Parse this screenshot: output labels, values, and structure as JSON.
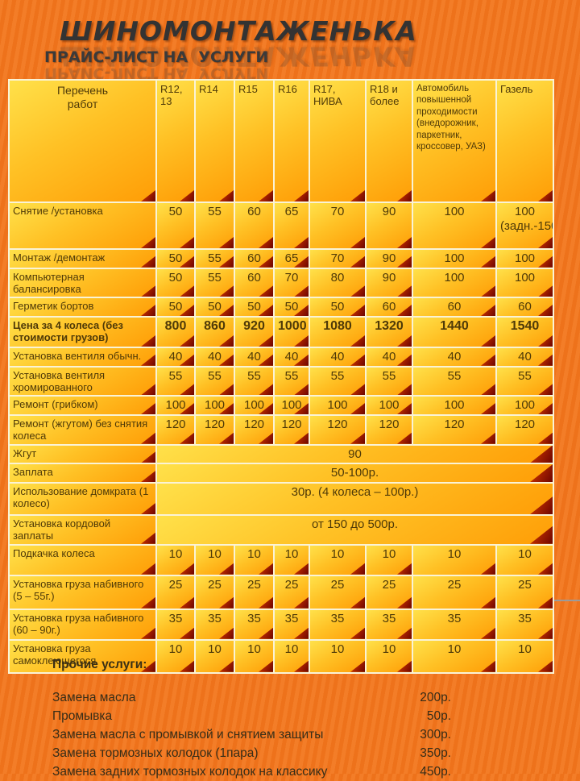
{
  "page": {
    "title": "ШИНОМОНТАЖЕНЬКА",
    "subtitle": "ПРАЙС-ЛИСТ НА  УСЛУГИ"
  },
  "table": {
    "header": [
      "Перечень\nработ",
      "R12, 13",
      "R14",
      "R15",
      "R16",
      "R17, НИВА",
      "R18 и более",
      "Автомобиль повышенной проходимости (внедорожник, паркетник, кроссовер, УАЗ)",
      "Газель"
    ],
    "rows": [
      {
        "label": "Снятие /установка",
        "values": [
          "50",
          "55",
          "60",
          "65",
          "70",
          "90",
          "100",
          "100 (задн.-150)"
        ]
      },
      {
        "label": "Монтаж /демонтаж",
        "values": [
          "50",
          "55",
          "60",
          "65",
          "70",
          "90",
          "100",
          "100"
        ]
      },
      {
        "label": "Компьютерная балансировка",
        "values": [
          "50",
          "55",
          "60",
          "70",
          "80",
          "90",
          "100",
          "100"
        ]
      },
      {
        "label": "Герметик бортов",
        "values": [
          "50",
          "50",
          "50",
          "50",
          "50",
          "60",
          "60",
          "60"
        ]
      },
      {
        "label": "Цена за 4 колеса (без стоимости грузов)",
        "values": [
          "800",
          "860",
          "920",
          "1000",
          "1080",
          "1320",
          "1440",
          "1540"
        ],
        "bold": true
      },
      {
        "label": "Установка вентиля обычн.",
        "values": [
          "40",
          "40",
          "40",
          "40",
          "40",
          "40",
          "40",
          "40"
        ]
      },
      {
        "label": "Установка вентиля хромированного",
        "values": [
          "55",
          "55",
          "55",
          "55",
          "55",
          "55",
          "55",
          "55"
        ]
      },
      {
        "label": "Ремонт (грибком)",
        "values": [
          "100",
          "100",
          "100",
          "100",
          "100",
          "100",
          "100",
          "100"
        ]
      },
      {
        "label": "Ремонт (жгутом) без снятия колеса",
        "values": [
          "120",
          "120",
          "120",
          "120",
          "120",
          "120",
          "120",
          "120"
        ]
      },
      {
        "label": "Жгут",
        "span": "90"
      },
      {
        "label": "Заплата",
        "span": "50-100р."
      },
      {
        "label": "Использование домкрата (1 колесо)",
        "span": "30р. (4 колеса – 100р.)"
      },
      {
        "label": "Установка кордовой заплаты",
        "span": "от 150 до 500р."
      },
      {
        "label": "Подкачка колеса",
        "values": [
          "10",
          "10",
          "10",
          "10",
          "10",
          "10",
          "10",
          "10"
        ]
      },
      {
        "label": "Установка груза набивного (5 – 55г.)",
        "values": [
          "25",
          "25",
          "25",
          "25",
          "25",
          "25",
          "25",
          "25"
        ]
      },
      {
        "label": "Установка груза набивного (60 – 90г.)",
        "values": [
          "35",
          "35",
          "35",
          "35",
          "35",
          "35",
          "35",
          "35"
        ]
      },
      {
        "label": "Установка груза самоклеющегося",
        "values": [
          "10",
          "10",
          "10",
          "10",
          "10",
          "10",
          "10",
          "10"
        ]
      }
    ]
  },
  "services": {
    "title": "Прочие услуги:",
    "items": [
      {
        "label": "Замена масла",
        "price": "200р."
      },
      {
        "label": "Промывка",
        "price": "50р."
      },
      {
        "label": "Замена масла  с промывкой и снятием защиты",
        "price": "300р."
      },
      {
        "label": "Замена тормозных колодок (1пара)",
        "price": "350р."
      },
      {
        "label": "Замена задних тормозных колодок на классику",
        "price": "450р."
      }
    ]
  },
  "colors": {
    "background": "#f2751c",
    "cell_gradient_top": "#ffe14a",
    "cell_gradient_bottom": "#ff9d06",
    "corner_triangle_dark": "#6d0400",
    "corner_triangle_bright": "#dd3c00",
    "table_border": "#faf3d6",
    "table_text": "#4f3a08",
    "title_text": "#333333"
  }
}
